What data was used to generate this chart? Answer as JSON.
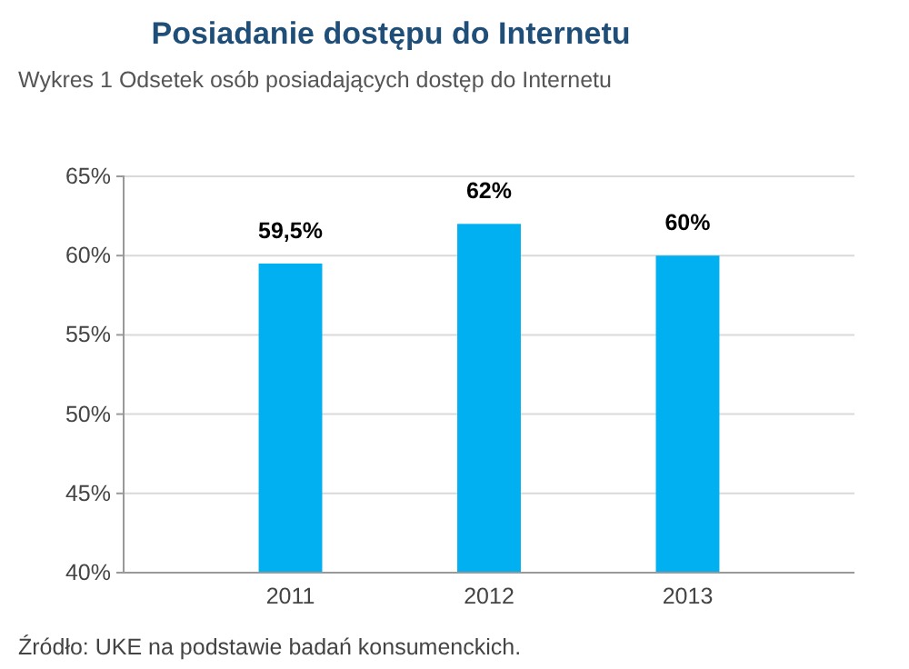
{
  "chart_data": {
    "type": "bar",
    "title": "Posiadanie dostępu do Internetu",
    "subtitle": "Wykres 1 Odsetek osób posiadających dostęp do Internetu",
    "categories": [
      "2011",
      "2012",
      "2013"
    ],
    "values": [
      59.5,
      62,
      60
    ],
    "value_labels": [
      "59,5%",
      "62%",
      "60%"
    ],
    "color": "#00b0f0",
    "ylim": [
      40,
      65
    ],
    "yticks": [
      {
        "value": 40,
        "label": "40%"
      },
      {
        "value": 45,
        "label": "45%"
      },
      {
        "value": 50,
        "label": "50%"
      },
      {
        "value": 55,
        "label": "55%"
      },
      {
        "value": 60,
        "label": "60%"
      },
      {
        "value": 65,
        "label": "65%"
      }
    ],
    "grid": "y",
    "annotations": [
      "Źródło: UKE na podstawie badań konsumenckich."
    ]
  }
}
